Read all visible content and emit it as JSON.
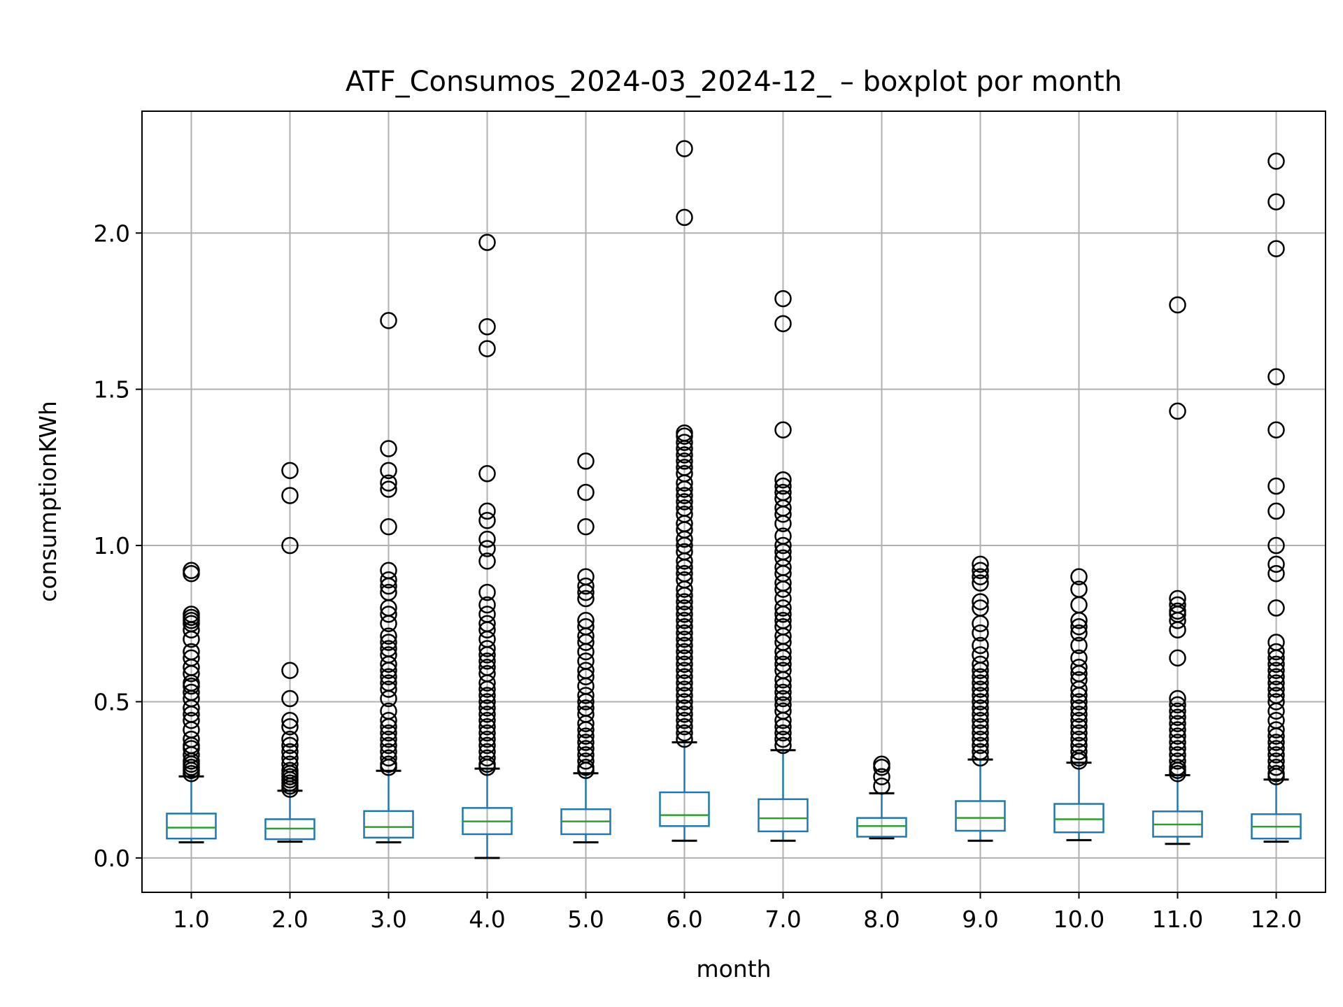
{
  "chart_data": {
    "type": "box",
    "title": "ATF_Consumos_2024-03_2024-12_ – boxplot por month",
    "xlabel": "month",
    "ylabel": "consumptionKWh",
    "ylim": [
      -0.11,
      2.39
    ],
    "yticks": [
      "0.0",
      "0.5",
      "1.0",
      "1.5",
      "2.0"
    ],
    "ytick_values": [
      0.0,
      0.5,
      1.0,
      1.5,
      2.0
    ],
    "grid": true,
    "colors": {
      "box": "#1f77b4",
      "median": "#2ca02c",
      "whisker_cap": "#000000",
      "flier": "#000000",
      "grid": "#b0b0b0"
    },
    "categories": [
      "1.0",
      "2.0",
      "3.0",
      "4.0",
      "5.0",
      "6.0",
      "7.0",
      "8.0",
      "9.0",
      "10.0",
      "11.0",
      "12.0"
    ],
    "boxes": [
      {
        "q1": 0.062,
        "median": 0.097,
        "q3": 0.142,
        "whisker_low": 0.05,
        "whisker_high": 0.261,
        "fliers": [
          0.92,
          0.91,
          0.78,
          0.77,
          0.76,
          0.75,
          0.73,
          0.7,
          0.66,
          0.64,
          0.61,
          0.59,
          0.56,
          0.55,
          0.53,
          0.51,
          0.48,
          0.46,
          0.44,
          0.41,
          0.38,
          0.36,
          0.35,
          0.33,
          0.31,
          0.3,
          0.29,
          0.28,
          0.27
        ]
      },
      {
        "q1": 0.06,
        "median": 0.094,
        "q3": 0.124,
        "whisker_low": 0.052,
        "whisker_high": 0.215,
        "fliers": [
          1.24,
          1.16,
          1.0,
          0.6,
          0.51,
          0.44,
          0.42,
          0.38,
          0.36,
          0.34,
          0.32,
          0.3,
          0.28,
          0.27,
          0.26,
          0.25,
          0.24,
          0.23,
          0.22
        ]
      },
      {
        "q1": 0.065,
        "median": 0.099,
        "q3": 0.15,
        "whisker_low": 0.05,
        "whisker_high": 0.279,
        "fliers": [
          1.72,
          1.31,
          1.24,
          1.2,
          1.18,
          1.06,
          0.92,
          0.89,
          0.87,
          0.85,
          0.8,
          0.78,
          0.75,
          0.71,
          0.69,
          0.67,
          0.65,
          0.62,
          0.6,
          0.58,
          0.56,
          0.54,
          0.51,
          0.47,
          0.44,
          0.42,
          0.4,
          0.38,
          0.36,
          0.34,
          0.32,
          0.3,
          0.29
        ]
      },
      {
        "q1": 0.076,
        "median": 0.117,
        "q3": 0.16,
        "whisker_low": 0.0,
        "whisker_high": 0.286,
        "fliers": [
          1.97,
          1.7,
          1.63,
          1.23,
          1.11,
          1.08,
          1.02,
          0.99,
          0.95,
          0.85,
          0.81,
          0.78,
          0.75,
          0.73,
          0.7,
          0.67,
          0.65,
          0.63,
          0.61,
          0.59,
          0.56,
          0.54,
          0.52,
          0.5,
          0.48,
          0.46,
          0.44,
          0.42,
          0.4,
          0.38,
          0.36,
          0.34,
          0.32,
          0.3,
          0.29
        ]
      },
      {
        "q1": 0.076,
        "median": 0.117,
        "q3": 0.156,
        "whisker_low": 0.05,
        "whisker_high": 0.271,
        "fliers": [
          1.27,
          1.17,
          1.06,
          0.9,
          0.87,
          0.85,
          0.83,
          0.76,
          0.74,
          0.71,
          0.69,
          0.66,
          0.63,
          0.6,
          0.58,
          0.55,
          0.52,
          0.5,
          0.48,
          0.46,
          0.43,
          0.41,
          0.39,
          0.37,
          0.35,
          0.33,
          0.31,
          0.29,
          0.28
        ]
      },
      {
        "q1": 0.102,
        "median": 0.137,
        "q3": 0.21,
        "whisker_low": 0.055,
        "whisker_high": 0.37,
        "fliers": [
          2.27,
          2.05,
          1.36,
          1.35,
          1.33,
          1.31,
          1.29,
          1.27,
          1.25,
          1.23,
          1.2,
          1.18,
          1.16,
          1.14,
          1.12,
          1.1,
          1.07,
          1.05,
          1.02,
          1.0,
          0.98,
          0.95,
          0.93,
          0.91,
          0.89,
          0.86,
          0.84,
          0.82,
          0.8,
          0.78,
          0.76,
          0.74,
          0.72,
          0.7,
          0.68,
          0.66,
          0.64,
          0.62,
          0.6,
          0.58,
          0.56,
          0.54,
          0.52,
          0.5,
          0.48,
          0.46,
          0.44,
          0.42,
          0.4,
          0.38
        ]
      },
      {
        "q1": 0.085,
        "median": 0.127,
        "q3": 0.188,
        "whisker_low": 0.055,
        "whisker_high": 0.345,
        "fliers": [
          1.79,
          1.71,
          1.37,
          1.21,
          1.19,
          1.17,
          1.15,
          1.12,
          1.1,
          1.07,
          1.03,
          1.0,
          0.98,
          0.96,
          0.93,
          0.91,
          0.88,
          0.86,
          0.83,
          0.8,
          0.78,
          0.76,
          0.74,
          0.71,
          0.69,
          0.66,
          0.64,
          0.62,
          0.6,
          0.57,
          0.55,
          0.53,
          0.51,
          0.49,
          0.47,
          0.44,
          0.42,
          0.4,
          0.38,
          0.36
        ]
      },
      {
        "q1": 0.068,
        "median": 0.102,
        "q3": 0.128,
        "whisker_low": 0.063,
        "whisker_high": 0.207,
        "fliers": [
          0.3,
          0.29,
          0.26,
          0.23
        ]
      },
      {
        "q1": 0.087,
        "median": 0.128,
        "q3": 0.182,
        "whisker_low": 0.055,
        "whisker_high": 0.315,
        "fliers": [
          0.94,
          0.92,
          0.9,
          0.88,
          0.82,
          0.8,
          0.75,
          0.72,
          0.68,
          0.65,
          0.62,
          0.6,
          0.58,
          0.56,
          0.54,
          0.52,
          0.5,
          0.48,
          0.46,
          0.44,
          0.42,
          0.4,
          0.38,
          0.36,
          0.34,
          0.32
        ]
      },
      {
        "q1": 0.082,
        "median": 0.124,
        "q3": 0.173,
        "whisker_low": 0.057,
        "whisker_high": 0.305,
        "fliers": [
          0.9,
          0.86,
          0.81,
          0.76,
          0.74,
          0.72,
          0.68,
          0.64,
          0.61,
          0.59,
          0.57,
          0.54,
          0.52,
          0.5,
          0.48,
          0.46,
          0.44,
          0.42,
          0.4,
          0.38,
          0.36,
          0.34,
          0.32,
          0.31
        ]
      },
      {
        "q1": 0.068,
        "median": 0.107,
        "q3": 0.149,
        "whisker_low": 0.045,
        "whisker_high": 0.265,
        "fliers": [
          1.77,
          1.43,
          0.83,
          0.81,
          0.79,
          0.78,
          0.76,
          0.73,
          0.64,
          0.51,
          0.49,
          0.47,
          0.45,
          0.43,
          0.41,
          0.39,
          0.37,
          0.35,
          0.33,
          0.31,
          0.29,
          0.28,
          0.27
        ]
      },
      {
        "q1": 0.062,
        "median": 0.1,
        "q3": 0.14,
        "whisker_low": 0.052,
        "whisker_high": 0.251,
        "fliers": [
          2.23,
          2.1,
          1.95,
          1.54,
          1.37,
          1.19,
          1.11,
          1.0,
          0.94,
          0.91,
          0.8,
          0.69,
          0.66,
          0.64,
          0.62,
          0.6,
          0.58,
          0.56,
          0.54,
          0.52,
          0.5,
          0.47,
          0.44,
          0.41,
          0.39,
          0.37,
          0.35,
          0.33,
          0.31,
          0.29,
          0.27,
          0.26
        ]
      }
    ]
  }
}
